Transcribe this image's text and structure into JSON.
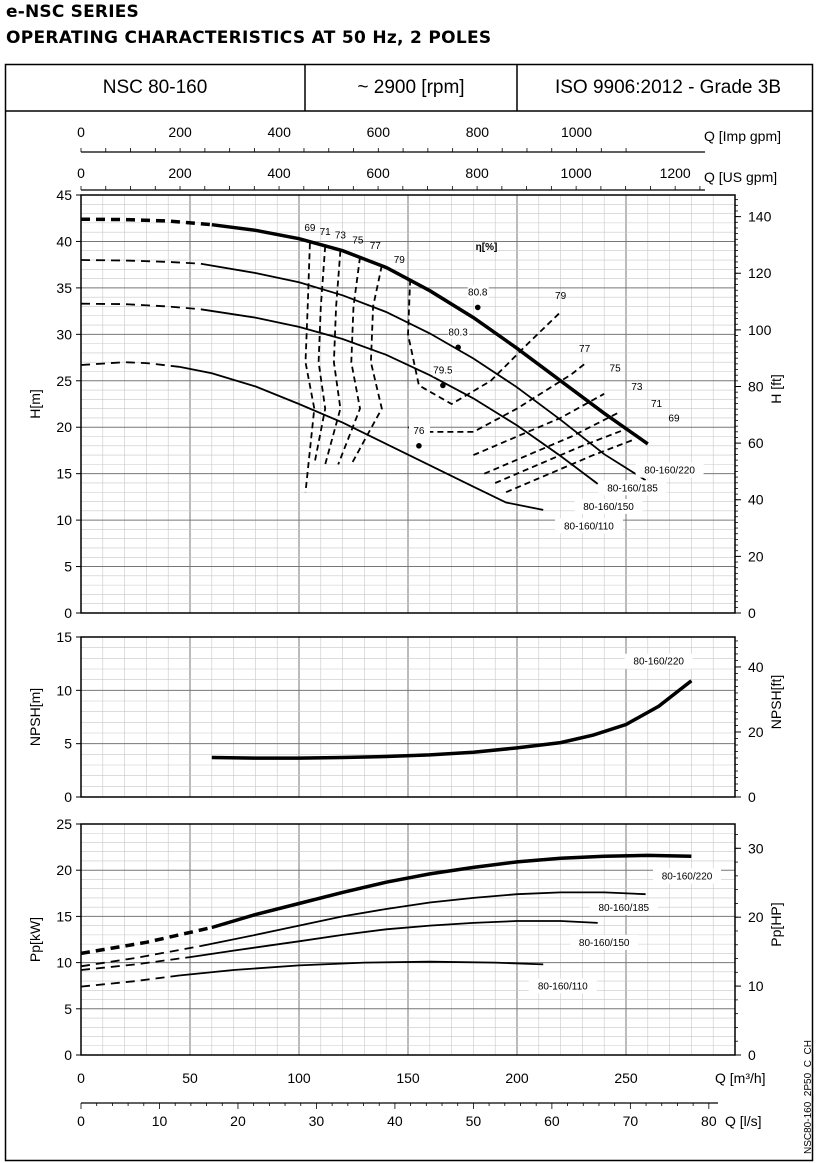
{
  "page": {
    "series_title": "e-NSC SERIES",
    "subtitle": "OPERATING CHARACTERISTICS AT 50 Hz, 2 POLES",
    "header_cells": [
      "NSC 80-160",
      "~ 2900 [rpm]",
      "ISO 9906:2012 - Grade 3B"
    ],
    "side_code": "NSC80-160_2P50_C_CH"
  },
  "chart_data": [
    {
      "type": "line",
      "title": "H[m]",
      "x_unit": "Q [m³/h]",
      "xlim": [
        0,
        300
      ],
      "ylim": [
        0,
        45
      ],
      "y_ticks": [
        "0",
        "5",
        "10",
        "15",
        "20",
        "25",
        "30",
        "35",
        "40",
        "45"
      ],
      "ylabel": "H[m]",
      "y2label": "H [ft]",
      "y2_ticks": [
        "0",
        "20",
        "40",
        "60",
        "80",
        "100",
        "120",
        "140"
      ],
      "top_axes": [
        {
          "label": "Q [Imp gpm]",
          "ticks": [
            "0",
            "200",
            "400",
            "600",
            "800",
            "1000"
          ]
        },
        {
          "label": "Q [US gpm]",
          "ticks": [
            "0",
            "200",
            "400",
            "600",
            "800",
            "1000",
            "1200"
          ]
        }
      ],
      "grid": true,
      "series": [
        {
          "name": "80-160/220",
          "dashed": [
            [
              0,
              42.4
            ],
            [
              20,
              42.35
            ],
            [
              40,
              42.2
            ],
            [
              60,
              41.8
            ]
          ],
          "values": [
            [
              60,
              41.8
            ],
            [
              80,
              41.2
            ],
            [
              100,
              40.3
            ],
            [
              120,
              39.0
            ],
            [
              140,
              37.2
            ],
            [
              160,
              34.7
            ],
            [
              180,
              31.8
            ],
            [
              200,
              28.5
            ],
            [
              220,
              25.0
            ],
            [
              240,
              21.5
            ],
            [
              260,
              18.2
            ]
          ]
        },
        {
          "name": "80-160/185",
          "dashed": [
            [
              0,
              38.0
            ],
            [
              20,
              37.95
            ],
            [
              40,
              37.8
            ],
            [
              55,
              37.6
            ]
          ],
          "values": [
            [
              55,
              37.6
            ],
            [
              80,
              36.6
            ],
            [
              100,
              35.6
            ],
            [
              120,
              34.2
            ],
            [
              140,
              32.4
            ],
            [
              160,
              30.1
            ],
            [
              180,
              27.4
            ],
            [
              200,
              24.3
            ],
            [
              220,
              20.8
            ],
            [
              240,
              17.1
            ],
            [
              259,
              14.3
            ]
          ]
        },
        {
          "name": "80-160/150",
          "dashed": [
            [
              0,
              33.3
            ],
            [
              20,
              33.25
            ],
            [
              40,
              33.0
            ],
            [
              55,
              32.7
            ]
          ],
          "values": [
            [
              55,
              32.7
            ],
            [
              80,
              31.8
            ],
            [
              100,
              30.8
            ],
            [
              120,
              29.5
            ],
            [
              140,
              27.8
            ],
            [
              160,
              25.6
            ],
            [
              180,
              23.1
            ],
            [
              200,
              20.2
            ],
            [
              220,
              16.9
            ],
            [
              237,
              13.9
            ]
          ]
        },
        {
          "name": "80-160/110",
          "dashed": [
            [
              0,
              26.7
            ],
            [
              20,
              27.0
            ],
            [
              30,
              26.9
            ],
            [
              45,
              26.5
            ]
          ],
          "values": [
            [
              45,
              26.5
            ],
            [
              60,
              25.8
            ],
            [
              80,
              24.4
            ],
            [
              100,
              22.5
            ],
            [
              120,
              20.5
            ],
            [
              140,
              18.2
            ],
            [
              160,
              15.9
            ],
            [
              180,
              13.6
            ],
            [
              195,
              11.9
            ],
            [
              212,
              11.1
            ]
          ]
        }
      ],
      "efficiency_label": "η[%]",
      "efficiency_contours": [
        {
          "label": "69",
          "values": [
            [
              105,
              39.8
            ],
            [
              104,
              33
            ],
            [
              103,
              27
            ],
            [
              107,
              22
            ],
            [
              103,
              13
            ]
          ]
        },
        {
          "label": "71",
          "values": [
            [
              112,
              39.5
            ],
            [
              110,
              33
            ],
            [
              109,
              27
            ],
            [
              112,
              22
            ],
            [
              107,
              16
            ]
          ]
        },
        {
          "label": "73",
          "values": [
            [
              119,
              39.0
            ],
            [
              117,
              33
            ],
            [
              116,
              27
            ],
            [
              119,
              22
            ],
            [
              112,
              16
            ]
          ]
        },
        {
          "label": "75",
          "values": [
            [
              128,
              38.3
            ],
            [
              125,
              33
            ],
            [
              124,
              27
            ],
            [
              128,
              22
            ],
            [
              118,
              16
            ]
          ]
        },
        {
          "label": "77",
          "values": [
            [
              138,
              37.4
            ],
            [
              134,
              33
            ],
            [
              133,
              27
            ],
            [
              138,
              22
            ],
            [
              124,
              16
            ]
          ]
        },
        {
          "label": "79",
          "values": [
            [
              151,
              35.9
            ],
            [
              150,
              30
            ],
            [
              155,
              24.5
            ],
            [
              170,
              22.5
            ],
            [
              188,
              25
            ],
            [
              205,
              29
            ],
            [
              220,
              32.4
            ]
          ]
        },
        {
          "label": "77",
          "values": [
            [
              150,
              20
            ],
            [
              158,
              19.5
            ],
            [
              180,
              19.5
            ],
            [
              200,
              22
            ],
            [
              225,
              25.7
            ],
            [
              232,
              27
            ]
          ]
        },
        {
          "label": "75",
          "values": [
            [
              180,
              17
            ],
            [
              200,
              19
            ],
            [
              220,
              21
            ],
            [
              240,
              23.6
            ]
          ]
        },
        {
          "label": "73",
          "values": [
            [
              185,
              15
            ],
            [
              205,
              17
            ],
            [
              225,
              19
            ],
            [
              246,
              21.5
            ]
          ]
        },
        {
          "label": "71",
          "values": [
            [
              190,
              14
            ],
            [
              210,
              16
            ],
            [
              230,
              18
            ],
            [
              250,
              19.8
            ]
          ]
        },
        {
          "label": "69",
          "values": [
            [
              195,
              13
            ],
            [
              215,
              15
            ],
            [
              235,
              17
            ],
            [
              254,
              18.7
            ]
          ]
        }
      ],
      "efficiency_points": [
        {
          "label": "80.8",
          "value": [
            182,
            32.9
          ]
        },
        {
          "label": "80.3",
          "value": [
            173,
            28.6
          ]
        },
        {
          "label": "79.5",
          "value": [
            166,
            24.5
          ]
        },
        {
          "label": "76",
          "value": [
            155,
            18.0
          ]
        }
      ]
    },
    {
      "type": "line",
      "title": "NPSH[m]",
      "xlim": [
        0,
        300
      ],
      "ylim": [
        0,
        15
      ],
      "y_ticks": [
        "0",
        "5",
        "10",
        "15"
      ],
      "ylabel": "NPSH[m]",
      "y2label": "NPSH[ft]",
      "y2_ticks": [
        "0",
        "20",
        "40"
      ],
      "grid": true,
      "series": [
        {
          "name": "80-160/220",
          "values": [
            [
              60,
              3.7
            ],
            [
              80,
              3.65
            ],
            [
              100,
              3.65
            ],
            [
              120,
              3.7
            ],
            [
              140,
              3.8
            ],
            [
              160,
              3.95
            ],
            [
              180,
              4.2
            ],
            [
              200,
              4.6
            ],
            [
              220,
              5.1
            ],
            [
              235,
              5.8
            ],
            [
              250,
              6.8
            ],
            [
              265,
              8.5
            ],
            [
              280,
              10.9
            ]
          ]
        }
      ]
    },
    {
      "type": "line",
      "title": "Pp[kW]",
      "xlim": [
        0,
        300
      ],
      "ylim": [
        0,
        25
      ],
      "y_ticks": [
        "0",
        "5",
        "10",
        "15",
        "20",
        "25"
      ],
      "ylabel": "Pp[kW]",
      "y2label": "Pp[HP]",
      "y2_ticks": [
        "0",
        "10",
        "20",
        "30"
      ],
      "xlabel": "Q [m³/h]",
      "x_ticks": [
        "0",
        "50",
        "100",
        "150",
        "200",
        "250"
      ],
      "bottom_axis": {
        "label": "Q [l/s]",
        "ticks": [
          "0",
          "10",
          "20",
          "30",
          "40",
          "50",
          "60",
          "70",
          "80"
        ]
      },
      "grid": true,
      "series": [
        {
          "name": "80-160/220",
          "dashed": [
            [
              0,
              11.0
            ],
            [
              30,
              12.2
            ],
            [
              60,
              13.8
            ]
          ],
          "values": [
            [
              60,
              13.8
            ],
            [
              80,
              15.2
            ],
            [
              100,
              16.4
            ],
            [
              120,
              17.6
            ],
            [
              140,
              18.7
            ],
            [
              160,
              19.6
            ],
            [
              180,
              20.3
            ],
            [
              200,
              20.9
            ],
            [
              220,
              21.3
            ],
            [
              240,
              21.5
            ],
            [
              260,
              21.6
            ],
            [
              280,
              21.5
            ]
          ]
        },
        {
          "name": "80-160/185",
          "dashed": [
            [
              0,
              9.6
            ],
            [
              25,
              10.5
            ],
            [
              55,
              11.8
            ]
          ],
          "values": [
            [
              55,
              11.8
            ],
            [
              80,
              13.0
            ],
            [
              100,
              14.0
            ],
            [
              120,
              15.0
            ],
            [
              140,
              15.8
            ],
            [
              160,
              16.5
            ],
            [
              180,
              17.0
            ],
            [
              200,
              17.4
            ],
            [
              220,
              17.6
            ],
            [
              240,
              17.6
            ],
            [
              259,
              17.4
            ]
          ]
        },
        {
          "name": "80-160/150",
          "dashed": [
            [
              0,
              9.2
            ],
            [
              25,
              9.8
            ],
            [
              50,
              10.6
            ]
          ],
          "values": [
            [
              50,
              10.6
            ],
            [
              70,
              11.3
            ],
            [
              100,
              12.3
            ],
            [
              120,
              13.0
            ],
            [
              140,
              13.6
            ],
            [
              160,
              14.0
            ],
            [
              180,
              14.3
            ],
            [
              200,
              14.5
            ],
            [
              220,
              14.5
            ],
            [
              237,
              14.3
            ]
          ]
        },
        {
          "name": "80-160/110",
          "dashed": [
            [
              0,
              7.4
            ],
            [
              25,
              8.0
            ],
            [
              45,
              8.6
            ]
          ],
          "values": [
            [
              45,
              8.6
            ],
            [
              70,
              9.2
            ],
            [
              100,
              9.7
            ],
            [
              130,
              10.0
            ],
            [
              160,
              10.1
            ],
            [
              190,
              10.0
            ],
            [
              212,
              9.8
            ]
          ]
        }
      ]
    }
  ]
}
